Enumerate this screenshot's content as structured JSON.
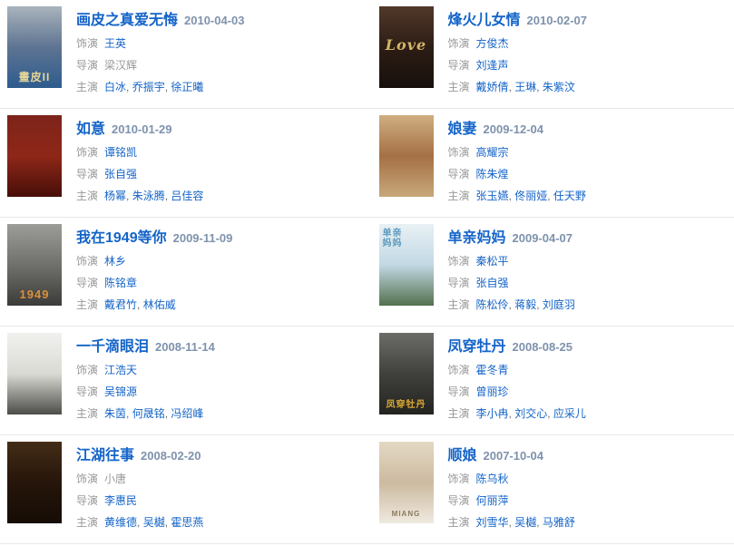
{
  "page": {
    "background": "#ffffff",
    "divider_color": "#e7e7e7",
    "title_color": "#1464c8",
    "link_color": "#1464c8",
    "date_color": "#7e92ad",
    "label_color": "#999999"
  },
  "labels": {
    "role": "饰演",
    "director": "导演",
    "starring": "主演",
    "separator": ", "
  },
  "entries": [
    {
      "title": "画皮之真爱无悔",
      "date": "2010-04-03",
      "role": "王英",
      "role_is_link": true,
      "director": "梁汉辉",
      "director_is_link": false,
      "starring": [
        "白冰",
        "乔振宇",
        "徐正曦"
      ],
      "poster": {
        "colors": [
          "#a9b4bc",
          "#5e7492",
          "#2d5c8e"
        ],
        "text": "畫皮II",
        "text_color": "#e6d698",
        "text_size": 12,
        "text_pos": "bottom",
        "italic": false
      }
    },
    {
      "title": "烽火儿女情",
      "date": "2010-02-07",
      "role": "方俊杰",
      "role_is_link": true,
      "director": "刘逢声",
      "director_is_link": true,
      "starring": [
        "戴娇倩",
        "王琳",
        "朱紫汶"
      ],
      "poster": {
        "colors": [
          "#52382a",
          "#2c1d15",
          "#17100c"
        ],
        "text": "Love",
        "text_color": "#d7b469",
        "text_size": 16,
        "text_pos": "middle",
        "italic": true
      }
    },
    {
      "title": "如意",
      "date": "2010-01-29",
      "role": "谭铭凯",
      "role_is_link": true,
      "director": "张自强",
      "director_is_link": true,
      "starring": [
        "杨幂",
        "朱泳腾",
        "吕佳容"
      ],
      "poster": {
        "colors": [
          "#7d241a",
          "#8e2718",
          "#470e08"
        ],
        "text": "",
        "text_color": "",
        "text_size": 0,
        "text_pos": "bottom",
        "italic": false
      }
    },
    {
      "title": "娘妻",
      "date": "2009-12-04",
      "role": "高耀宗",
      "role_is_link": true,
      "director": "陈朱煌",
      "director_is_link": true,
      "starring": [
        "张玉嬿",
        "佟丽娅",
        "任天野"
      ],
      "poster": {
        "colors": [
          "#cfae80",
          "#a57045",
          "#c7a87a"
        ],
        "text": "",
        "text_color": "",
        "text_size": 0,
        "text_pos": "bottom",
        "italic": false
      }
    },
    {
      "title": "我在1949等你",
      "date": "2009-11-09",
      "role": "林乡",
      "role_is_link": true,
      "director": "陈铭章",
      "director_is_link": true,
      "starring": [
        "戴君竹",
        "林佑威"
      ],
      "poster": {
        "colors": [
          "#9c9c98",
          "#70706c",
          "#3b3b39"
        ],
        "text": "1949",
        "text_color": "#d8903c",
        "text_size": 13,
        "text_pos": "bottom",
        "italic": false
      }
    },
    {
      "title": "单亲妈妈",
      "date": "2009-04-07",
      "role": "秦松平",
      "role_is_link": true,
      "director": "张自强",
      "director_is_link": true,
      "starring": [
        "陈松伶",
        "蒋毅",
        "刘庭羽"
      ],
      "poster": {
        "colors": [
          "#e9f1f5",
          "#c2d8e4",
          "#53704e"
        ],
        "text": "单亲\n妈妈",
        "text_color": "#5c9bbf",
        "text_size": 10,
        "text_pos": "top",
        "italic": false
      }
    },
    {
      "title": "一千滴眼泪",
      "date": "2008-11-14",
      "role": "江浩天",
      "role_is_link": true,
      "director": "吴锦源",
      "director_is_link": true,
      "starring": [
        "朱茵",
        "何晟铭",
        "冯绍峰"
      ],
      "poster": {
        "colors": [
          "#f1f1ef",
          "#dadad4",
          "#4c4c48"
        ],
        "text": "",
        "text_color": "",
        "text_size": 0,
        "text_pos": "bottom",
        "italic": false
      }
    },
    {
      "title": "凤穿牡丹",
      "date": "2008-08-25",
      "role": "霍冬青",
      "role_is_link": true,
      "director": "曾丽珍",
      "director_is_link": true,
      "starring": [
        "李小冉",
        "刘交心",
        "应采儿"
      ],
      "poster": {
        "colors": [
          "#6d6d68",
          "#40403c",
          "#232320"
        ],
        "text": "凤穿牡丹",
        "text_color": "#d9a833",
        "text_size": 10,
        "text_pos": "bottom",
        "italic": false
      }
    },
    {
      "title": "江湖往事",
      "date": "2008-02-20",
      "role": "小唐",
      "role_is_link": false,
      "director": "李惠民",
      "director_is_link": true,
      "starring": [
        "黄维德",
        "吴樾",
        "霍思燕"
      ],
      "poster": {
        "colors": [
          "#432d17",
          "#26150a",
          "#150d06"
        ],
        "text": "",
        "text_color": "",
        "text_size": 0,
        "text_pos": "bottom",
        "italic": false
      }
    },
    {
      "title": "顺娘",
      "date": "2007-10-04",
      "role": "陈乌秋",
      "role_is_link": true,
      "director": "何丽萍",
      "director_is_link": true,
      "starring": [
        "刘雪华",
        "吴樾",
        "马雅舒"
      ],
      "poster": {
        "colors": [
          "#e4d8c4",
          "#ccbaa0",
          "#efeadf"
        ],
        "text": "MIANG",
        "text_color": "#8b7b5f",
        "text_size": 8,
        "text_pos": "bottom",
        "italic": false
      }
    }
  ]
}
